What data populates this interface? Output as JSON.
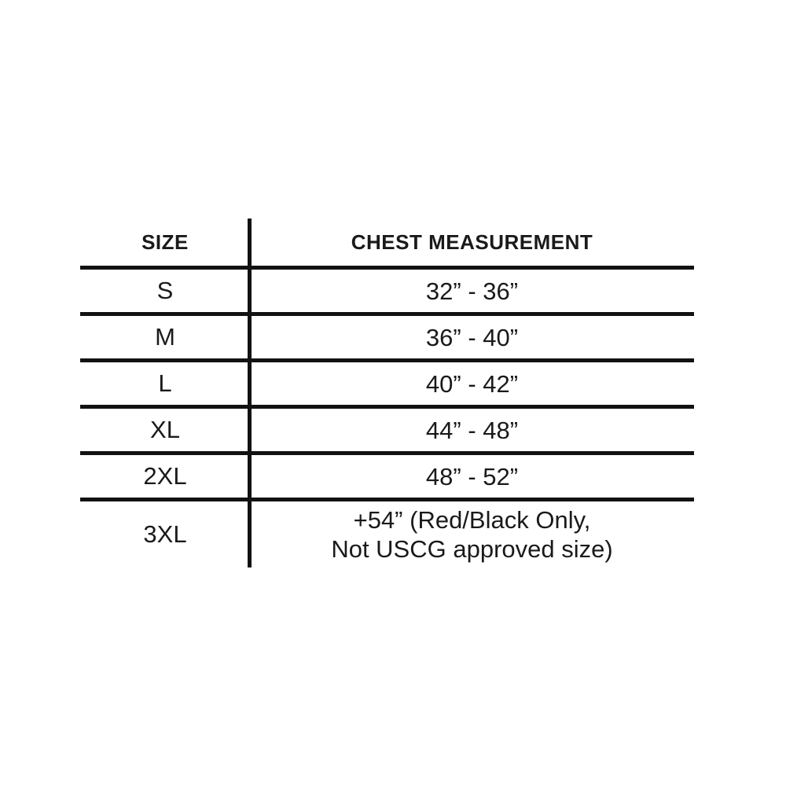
{
  "chart_data": {
    "type": "table",
    "columns": [
      "SIZE",
      "CHEST MEASUREMENT"
    ],
    "rows": [
      [
        "S",
        "32” - 36”"
      ],
      [
        "M",
        "36” - 40”"
      ],
      [
        "L",
        "40” - 42”"
      ],
      [
        "XL",
        "44” - 48”"
      ],
      [
        "2XL",
        "48” - 52”"
      ],
      [
        "3XL",
        "+54” (Red/Black Only,\nNot USCG approved size)"
      ]
    ],
    "legend_position": "none",
    "grid": "horizontal-rules-with-single-column-divider"
  },
  "colors": {
    "text": "#1a1a1a",
    "line": "#121212",
    "background": "#ffffff"
  }
}
